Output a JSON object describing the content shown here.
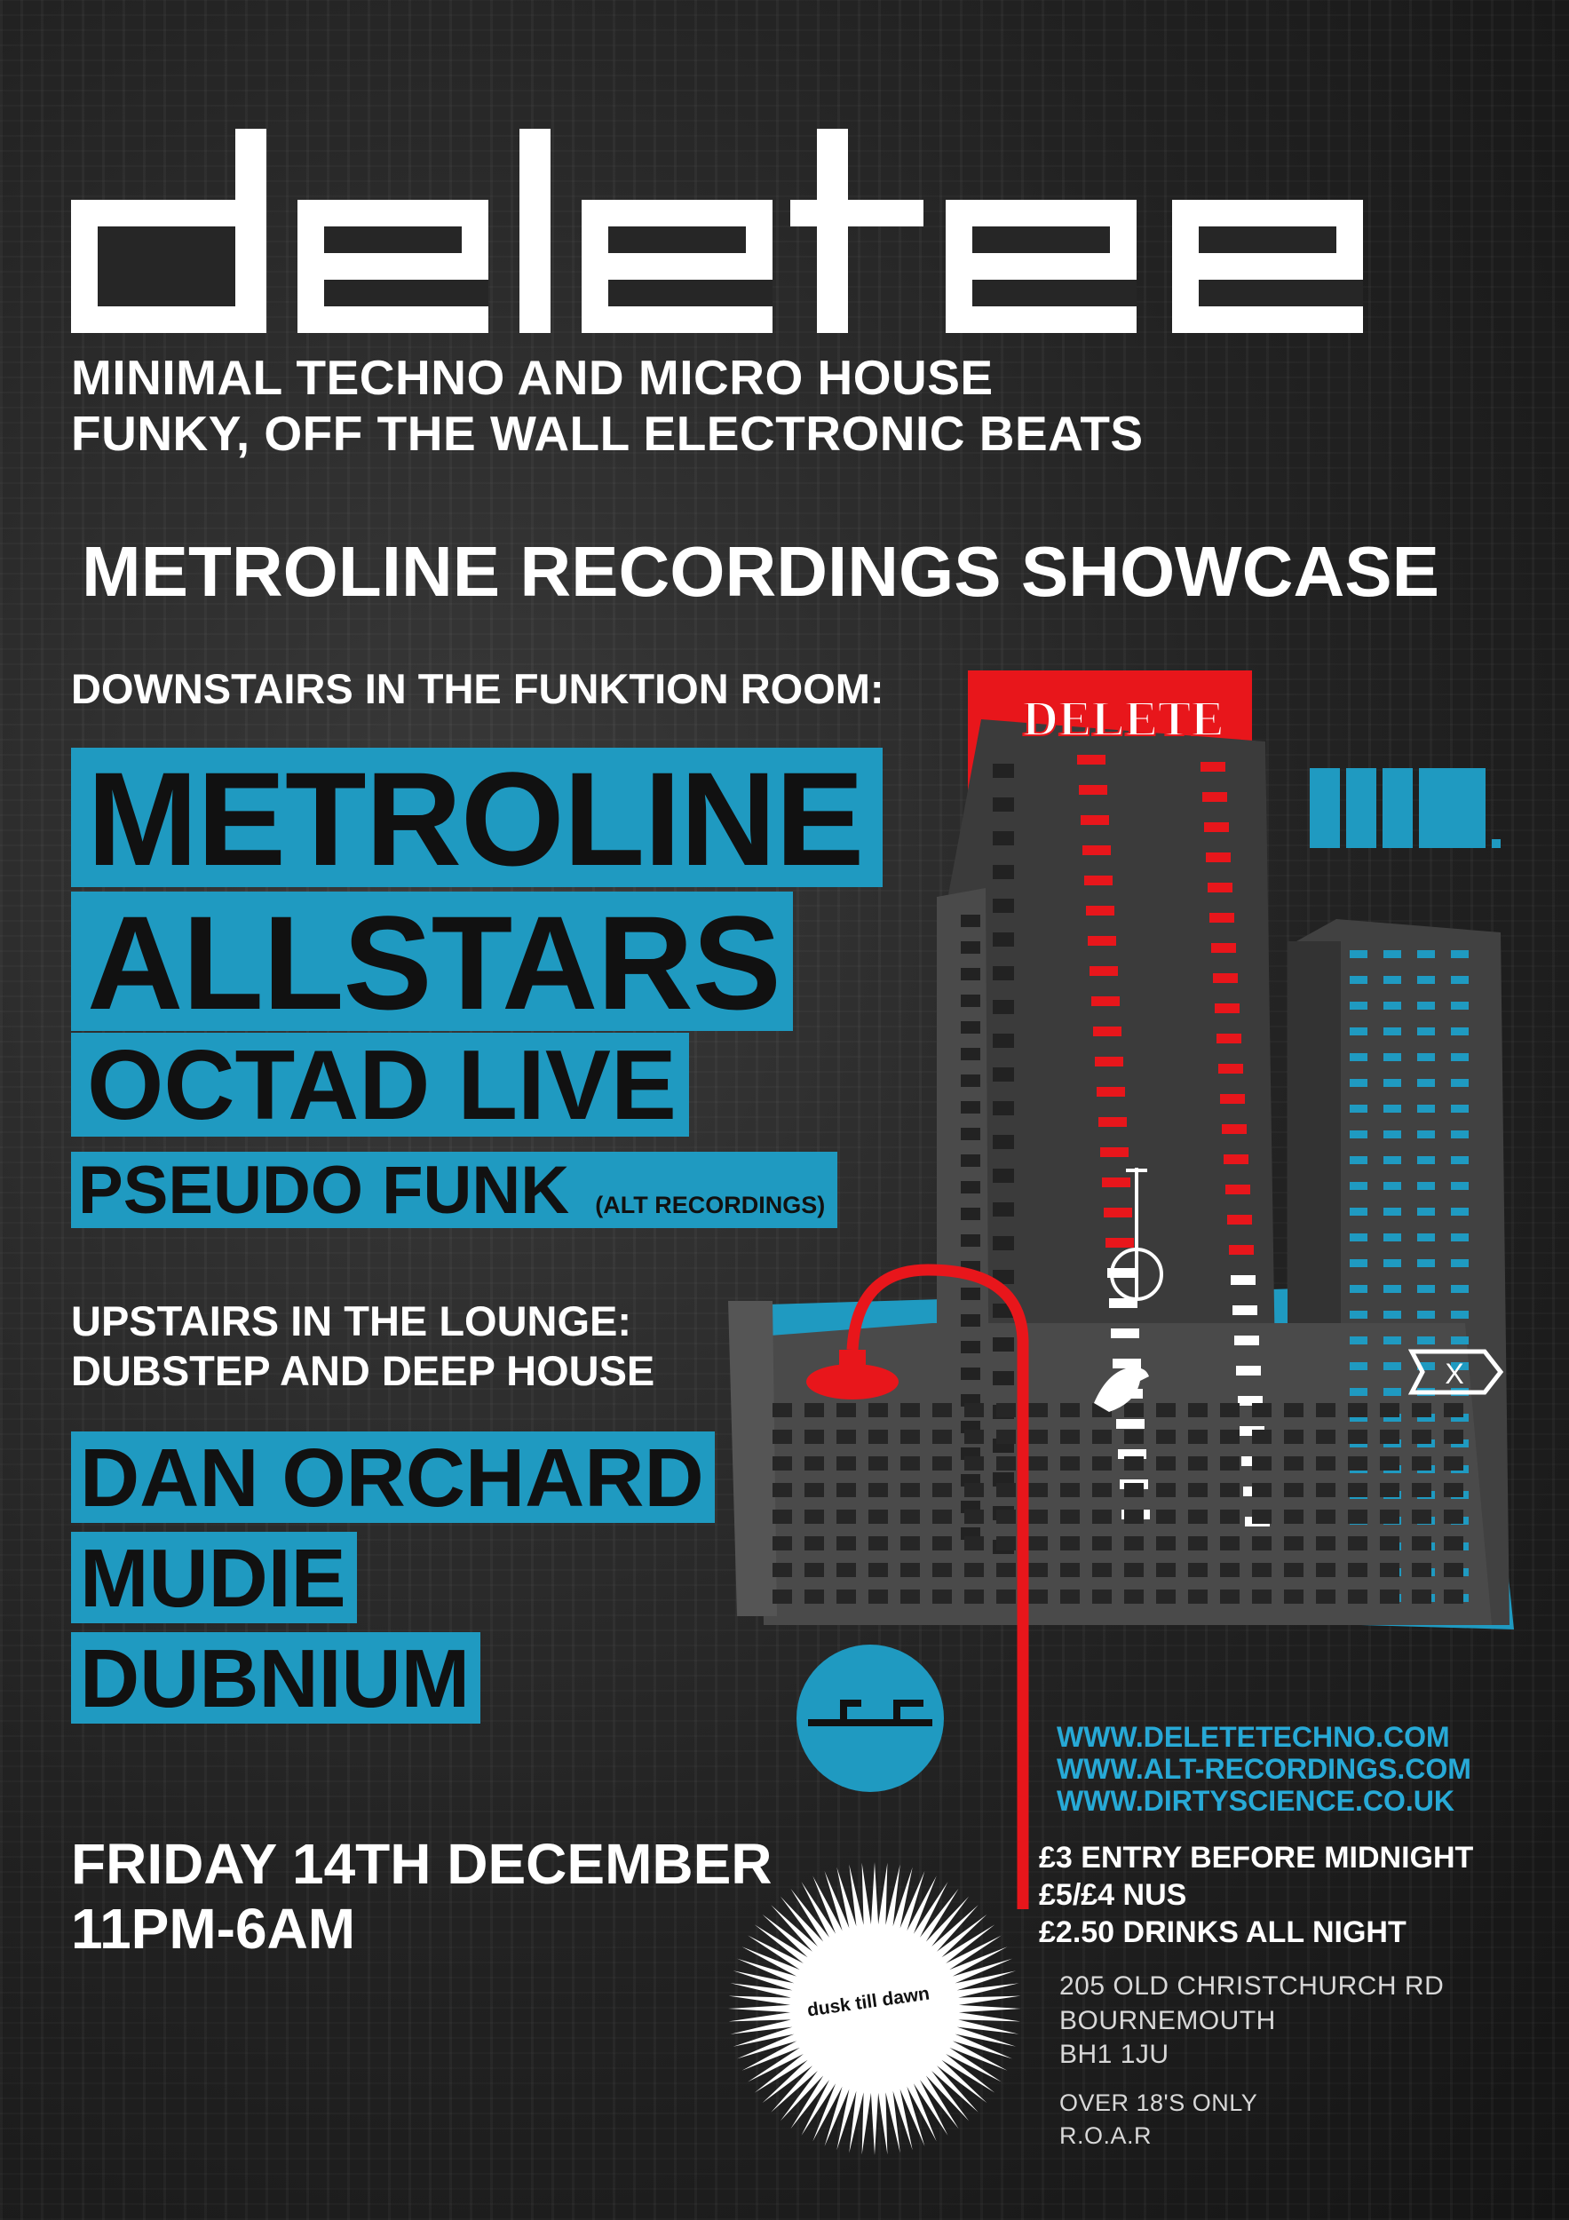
{
  "logo": {
    "wordmark": "delete"
  },
  "tagline": {
    "line1": "MINIMAL TECHNO AND MICRO HOUSE",
    "line2": "FUNKY, OFF THE WALL ELECTRONIC BEATS"
  },
  "showcase": "METROLINE RECORDINGS SHOWCASE",
  "downstairs": {
    "heading": "DOWNSTAIRS IN THE FUNKTION ROOM:",
    "acts": [
      {
        "name": "METROLINE"
      },
      {
        "name": "ALLSTARS"
      },
      {
        "name": "OCTAD LIVE"
      },
      {
        "name": "PSEUDO FUNK",
        "note": "(ALT RECORDINGS)"
      }
    ]
  },
  "upstairs": {
    "heading": "UPSTAIRS IN THE LOUNGE:",
    "genre": "DUBSTEP AND DEEP HOUSE",
    "acts": [
      "DAN ORCHARD",
      "MUDIE",
      "DUBNIUM"
    ]
  },
  "date": {
    "day": "FRIDAY 14TH DECEMBER",
    "time": "11PM-6AM"
  },
  "links": [
    "WWW.DELETETECHNO.COM",
    "WWW.ALT-RECORDINGS.COM",
    "WWW.DIRTYSCIENCE.CO.UK"
  ],
  "prices": [
    "£3 ENTRY BEFORE MIDNIGHT",
    "£5/£4 NUS",
    "£2.50 DRINKS ALL NIGHT"
  ],
  "address": [
    "205 OLD CHRISTCHURCH RD",
    "BOURNEMOUTH",
    "BH1 1JU"
  ],
  "restrictions": [
    "OVER 18'S ONLY",
    "R.O.A.R"
  ],
  "venue_logo": "dusk till dawn",
  "sign_text": "DELETE",
  "colors": {
    "accent_blue": "#1f9ac1",
    "accent_red": "#e8161b",
    "text": "#ffffff",
    "background": "#222222"
  },
  "icons": [
    "delete-wordmark-logo",
    "metroline-logo-icon",
    "alt-recordings-logo-icon",
    "bird-icon",
    "x-badge-icon",
    "dirty-science-logo-icon",
    "sunburst-icon",
    "street-lamp-icon"
  ]
}
